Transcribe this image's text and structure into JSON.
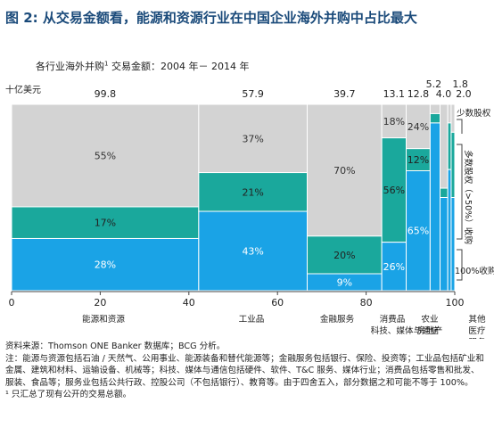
{
  "title": "图 2: 从交易金额看，能源和资源行业在中国企业海外并购中占比最大",
  "subtitle": "各行业海外并购",
  "subtitle_sup": "1",
  "subtitle_rest": "交易金额：2004 年－ 2014 年",
  "unit_label": "十亿美元",
  "colors": {
    "minority": "#d3d3d3",
    "majority": "#1aa89c",
    "full": "#1aa3e6",
    "border": "#ffffff",
    "title": "#1a4a7a"
  },
  "chart_data": {
    "type": "marimekko",
    "x_ticks": [
      "0",
      "20",
      "40",
      "60",
      "80",
      "100"
    ],
    "xlim": [
      0,
      100
    ],
    "categories": [
      {
        "label": "能源和资源",
        "total": "99.8",
        "width": 41.4,
        "minority": 55,
        "majority": 17,
        "full": 28,
        "labels": [
          "55%",
          "17%",
          "28%"
        ]
      },
      {
        "label": "工业品",
        "total": "57.9",
        "width": 24.0,
        "minority": 37,
        "majority": 21,
        "full": 43,
        "labels": [
          "37%",
          "21%",
          "43%"
        ]
      },
      {
        "label": "金融服务",
        "total": "39.7",
        "width": 16.5,
        "minority": 70,
        "majority": 20,
        "full": 9,
        "labels": [
          "70%",
          "20%",
          "9%"
        ]
      },
      {
        "label": "消费品",
        "total": "13.1",
        "width": 5.4,
        "minority": 18,
        "majority": 56,
        "full": 26,
        "labels": [
          "18%",
          "56%",
          "26%"
        ]
      },
      {
        "label": "科技、媒体与通信",
        "total": "12.8",
        "width": 5.3,
        "minority": 24,
        "majority": 12,
        "full": 65,
        "labels": [
          "24%",
          "12%",
          "65%"
        ]
      },
      {
        "label": "农业",
        "total": "5.2",
        "width": 2.2,
        "minority": 5,
        "majority": 5,
        "full": 90,
        "labels": []
      },
      {
        "label": "房地产",
        "total": "4.0",
        "width": 1.7,
        "minority": 45,
        "majority": 5,
        "full": 50,
        "labels": []
      },
      {
        "label": "其他",
        "total": "1.8",
        "width": 0.75,
        "minority": 10,
        "majority": 25,
        "full": 65,
        "labels": []
      },
      {
        "label": "医疗",
        "total": "2.0",
        "width": 0.8,
        "minority": 15,
        "majority": 35,
        "full": 50,
        "labels": []
      }
    ],
    "x_labels": [
      {
        "lines": [
          "能源和资源"
        ]
      },
      {
        "lines": [
          "工业品"
        ]
      },
      {
        "lines": [
          "金融服务"
        ]
      },
      {
        "lines": [
          "消费品",
          "科技、媒体与通信"
        ]
      },
      {
        "lines": [
          "农业",
          "房地产"
        ]
      },
      {
        "lines": [
          "其他",
          "医疗",
          "服务"
        ]
      }
    ],
    "legend": [
      {
        "label": "少数股权"
      },
      {
        "label": "多数股权（>50%）收购"
      },
      {
        "label": "100%收购"
      }
    ]
  },
  "footer": {
    "source": "资料来源：Thomson ONE Banker 数据库；BCG 分析。",
    "note": "注：能源与资源包括石油 / 天然气、公用事业、能源装备和替代能源等；金融服务包括银行、保险、投资等；工业品包括矿业和金属、建筑和材料、运输设备、机械等；科技、媒体与通信包括硬件、软件、T&C 服务、媒体行业；消费品包括零售和批发、服装、食品等；服务业包括公共行政、控股公司（不包括银行）、教育等。由于四舍五入，部分数据之和可能不等于 100%。",
    "footnote": "¹ 只汇总了现有公开的交易总额。"
  }
}
